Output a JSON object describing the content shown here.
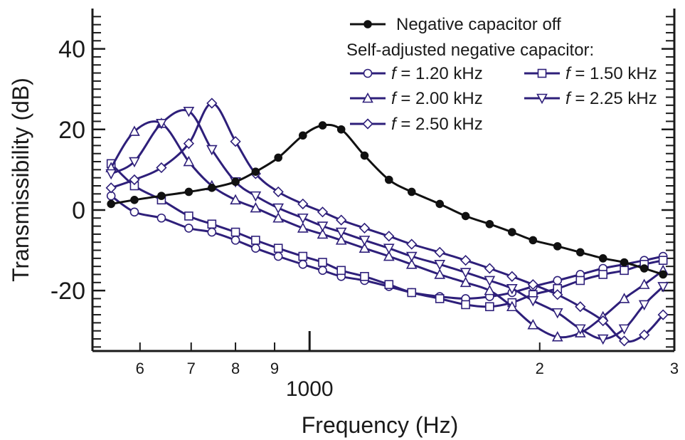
{
  "chart_data": {
    "type": "line",
    "x_scale": "log",
    "xlabel": "Frequency (Hz)",
    "ylabel": "Transmissibility (dB)",
    "xlim": [
      520,
      3000
    ],
    "ylim": [
      -35,
      50
    ],
    "y_ticks": [
      {
        "value": 40,
        "label": "40"
      },
      {
        "value": 20,
        "label": "20"
      },
      {
        "value": 0,
        "label": "0"
      },
      {
        "value": -20,
        "label": "-20"
      }
    ],
    "x_ticks": [
      {
        "value": 600,
        "label": "6"
      },
      {
        "value": 700,
        "label": "7"
      },
      {
        "value": 800,
        "label": "8"
      },
      {
        "value": 900,
        "label": "9"
      },
      {
        "value": 2000,
        "label": "2"
      },
      {
        "value": 3000,
        "label": "3"
      }
    ],
    "x_decade_label": {
      "value": 1000,
      "label": "1000"
    },
    "legend": {
      "title": "Self-adjusted negative capacitor:",
      "placement": "top-right"
    },
    "series": [
      {
        "name": "Negative capacitor off",
        "label_italic": "",
        "label_rest": "",
        "color": "#111111",
        "marker": "dot",
        "x": [
          550,
          590,
          640,
          695,
          745,
          800,
          850,
          910,
          980,
          1040,
          1100,
          1180,
          1270,
          1360,
          1480,
          1600,
          1720,
          1840,
          1960,
          2110,
          2260,
          2420,
          2580,
          2740,
          2900
        ],
        "y": [
          1.5,
          2.5,
          3.5,
          4.5,
          5.5,
          7,
          9.5,
          13,
          18.5,
          21,
          20,
          13.5,
          7.5,
          4.5,
          1.5,
          -1.5,
          -3.5,
          -5.5,
          -7.5,
          -9,
          -10.5,
          -12,
          -13,
          -14.5,
          -16
        ]
      },
      {
        "name": "f = 1.20 kHz",
        "label_italic": "f",
        "label_rest": " = 1.20 kHz",
        "color": "#2e1f7a",
        "marker": "circle",
        "x": [
          550,
          590,
          640,
          695,
          745,
          800,
          850,
          910,
          980,
          1040,
          1100,
          1180,
          1270,
          1360,
          1480,
          1600,
          1720,
          1840,
          1960,
          2110,
          2260,
          2420,
          2580,
          2740,
          2900
        ],
        "y": [
          3.5,
          -0.5,
          -2,
          -4.5,
          -5.5,
          -7.5,
          -9.5,
          -11.5,
          -13.5,
          -15,
          -16.5,
          -17.5,
          -19,
          -20.5,
          -21.5,
          -22,
          -21.5,
          -20.5,
          -19,
          -17.5,
          -16,
          -14.5,
          -13.5,
          -12.5,
          -11.5
        ]
      },
      {
        "name": "f = 1.50 kHz",
        "label_italic": "f",
        "label_rest": " = 1.50 kHz",
        "color": "#2e1f7a",
        "marker": "square",
        "x": [
          550,
          590,
          640,
          695,
          745,
          800,
          850,
          910,
          980,
          1040,
          1100,
          1180,
          1270,
          1360,
          1480,
          1600,
          1720,
          1840,
          1960,
          2110,
          2260,
          2420,
          2580,
          2740,
          2900
        ],
        "y": [
          11.5,
          6,
          2.5,
          -1.5,
          -3.5,
          -5.5,
          -7.5,
          -9.5,
          -11.5,
          -13,
          -15,
          -16.5,
          -18.5,
          -20.5,
          -22,
          -23.5,
          -24,
          -23,
          -21,
          -19.5,
          -17.5,
          -16,
          -15,
          -13.5,
          -12.5
        ]
      },
      {
        "name": "f = 2.00 kHz",
        "label_italic": "f",
        "label_rest": " = 2.00 kHz",
        "color": "#2e1f7a",
        "marker": "triangle-up",
        "x": [
          550,
          590,
          640,
          695,
          745,
          800,
          850,
          910,
          980,
          1040,
          1100,
          1180,
          1270,
          1360,
          1480,
          1600,
          1720,
          1840,
          1960,
          2110,
          2260,
          2420,
          2580,
          2740,
          2900
        ],
        "y": [
          10.5,
          19.5,
          21.5,
          12,
          6,
          2.5,
          0.5,
          -2,
          -4.5,
          -6,
          -7.5,
          -9.5,
          -11.5,
          -13.5,
          -16,
          -18,
          -20,
          -24,
          -28.5,
          -31.5,
          -30.5,
          -26.5,
          -22,
          -18.5,
          -15
        ]
      },
      {
        "name": "f = 2.25 kHz",
        "label_italic": "f",
        "label_rest": " = 2.25 kHz",
        "color": "#2e1f7a",
        "marker": "triangle-down",
        "x": [
          550,
          590,
          640,
          695,
          745,
          800,
          850,
          910,
          980,
          1040,
          1100,
          1180,
          1270,
          1360,
          1480,
          1600,
          1720,
          1840,
          1960,
          2110,
          2260,
          2420,
          2580,
          2740,
          2900
        ],
        "y": [
          9,
          12,
          21.5,
          24.5,
          15,
          7,
          3.5,
          0.5,
          -2,
          -4,
          -5.5,
          -7.5,
          -9.5,
          -11.5,
          -13.5,
          -15.5,
          -17.5,
          -19.5,
          -22.5,
          -25.5,
          -29.5,
          -32,
          -29.5,
          -23.5,
          -19
        ]
      },
      {
        "name": "f = 2.50 kHz",
        "label_italic": "f",
        "label_rest": " = 2.50 kHz",
        "color": "#2e1f7a",
        "marker": "diamond",
        "x": [
          550,
          590,
          640,
          695,
          745,
          800,
          850,
          910,
          980,
          1040,
          1100,
          1180,
          1270,
          1360,
          1480,
          1600,
          1720,
          1840,
          1960,
          2110,
          2260,
          2420,
          2580,
          2740,
          2900
        ],
        "y": [
          5.5,
          7.5,
          10.5,
          16.5,
          26.5,
          17,
          9,
          4.5,
          1.5,
          -0.5,
          -2.5,
          -4.5,
          -6.5,
          -8.5,
          -10.5,
          -12.5,
          -14.5,
          -16.5,
          -18.5,
          -21,
          -24,
          -27.5,
          -32.5,
          -31,
          -26
        ]
      }
    ]
  }
}
